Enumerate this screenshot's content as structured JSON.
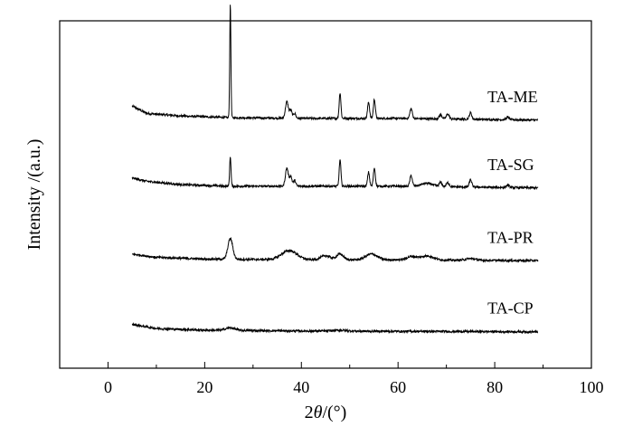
{
  "chart_data": {
    "type": "line",
    "title": "",
    "xlabel_prefix": "2",
    "xlabel_symbol": "θ",
    "xlabel_suffix": "/(°)",
    "ylabel": "Intensity /(a.u.)",
    "xlim": [
      -10,
      100
    ],
    "xticks": [
      0,
      20,
      40,
      60,
      80,
      100
    ],
    "y_ticks_shown": false,
    "grid": false,
    "legend": "none",
    "line_color": "#000000",
    "series": [
      {
        "name": "TA-ME",
        "offset": 300,
        "baseline": [
          [
            5,
            17
          ],
          [
            8,
            8
          ],
          [
            15,
            5
          ],
          [
            25,
            3
          ],
          [
            40,
            2
          ],
          [
            60,
            2
          ],
          [
            89,
            0
          ]
        ],
        "peaks": [
          {
            "x": 25.3,
            "h": 137,
            "w": 0.12
          },
          {
            "x": 37.0,
            "h": 20,
            "w": 0.3
          },
          {
            "x": 37.8,
            "h": 10,
            "w": 0.25
          },
          {
            "x": 38.6,
            "h": 6,
            "w": 0.25
          },
          {
            "x": 48.0,
            "h": 31,
            "w": 0.18
          },
          {
            "x": 53.9,
            "h": 20,
            "w": 0.2
          },
          {
            "x": 55.1,
            "h": 23,
            "w": 0.2
          },
          {
            "x": 62.7,
            "h": 12,
            "w": 0.25
          },
          {
            "x": 68.8,
            "h": 5,
            "w": 0.3
          },
          {
            "x": 70.3,
            "h": 6,
            "w": 0.3
          },
          {
            "x": 75.0,
            "h": 8,
            "w": 0.25
          },
          {
            "x": 82.7,
            "h": 3,
            "w": 0.3
          }
        ]
      },
      {
        "name": "TA-SG",
        "offset": 218,
        "baseline": [
          [
            5,
            12
          ],
          [
            8,
            8
          ],
          [
            15,
            4
          ],
          [
            25,
            2
          ],
          [
            40,
            2
          ],
          [
            60,
            2
          ],
          [
            89,
            0
          ]
        ],
        "peaks": [
          {
            "x": 25.3,
            "h": 36,
            "w": 0.14
          },
          {
            "x": 37.0,
            "h": 22,
            "w": 0.3
          },
          {
            "x": 37.8,
            "h": 12,
            "w": 0.25
          },
          {
            "x": 38.6,
            "h": 7,
            "w": 0.25
          },
          {
            "x": 48.0,
            "h": 32,
            "w": 0.18
          },
          {
            "x": 53.9,
            "h": 17,
            "w": 0.2
          },
          {
            "x": 55.1,
            "h": 22,
            "w": 0.2
          },
          {
            "x": 62.7,
            "h": 13,
            "w": 0.25
          },
          {
            "x": 66.0,
            "h": 4,
            "w": 1.2
          },
          {
            "x": 68.8,
            "h": 5,
            "w": 0.3
          },
          {
            "x": 70.3,
            "h": 5,
            "w": 0.3
          },
          {
            "x": 75.0,
            "h": 9,
            "w": 0.25
          },
          {
            "x": 82.7,
            "h": 3,
            "w": 0.3
          }
        ]
      },
      {
        "name": "TA-PR",
        "offset": 130,
        "baseline": [
          [
            5,
            8
          ],
          [
            10,
            4
          ],
          [
            20,
            2
          ],
          [
            40,
            1
          ],
          [
            60,
            1
          ],
          [
            89,
            0
          ]
        ],
        "peaks": [
          {
            "x": 25.3,
            "h": 25,
            "w": 0.5
          },
          {
            "x": 37.5,
            "h": 11,
            "w": 1.6
          },
          {
            "x": 45.0,
            "h": 5,
            "w": 1.0
          },
          {
            "x": 48.0,
            "h": 7,
            "w": 0.7
          },
          {
            "x": 54.5,
            "h": 7,
            "w": 1.2
          },
          {
            "x": 62.8,
            "h": 4,
            "w": 1.0
          },
          {
            "x": 66.0,
            "h": 5,
            "w": 1.3
          },
          {
            "x": 75.0,
            "h": 2,
            "w": 1.0
          }
        ]
      },
      {
        "name": "TA-CP",
        "offset": 45,
        "baseline": [
          [
            5,
            8
          ],
          [
            10,
            3
          ],
          [
            20,
            1
          ],
          [
            40,
            0
          ],
          [
            89,
            -1
          ]
        ],
        "peaks": [
          {
            "x": 25.3,
            "h": 3,
            "w": 1.0
          },
          {
            "x": 48.0,
            "h": 1,
            "w": 1.5
          }
        ]
      }
    ]
  }
}
